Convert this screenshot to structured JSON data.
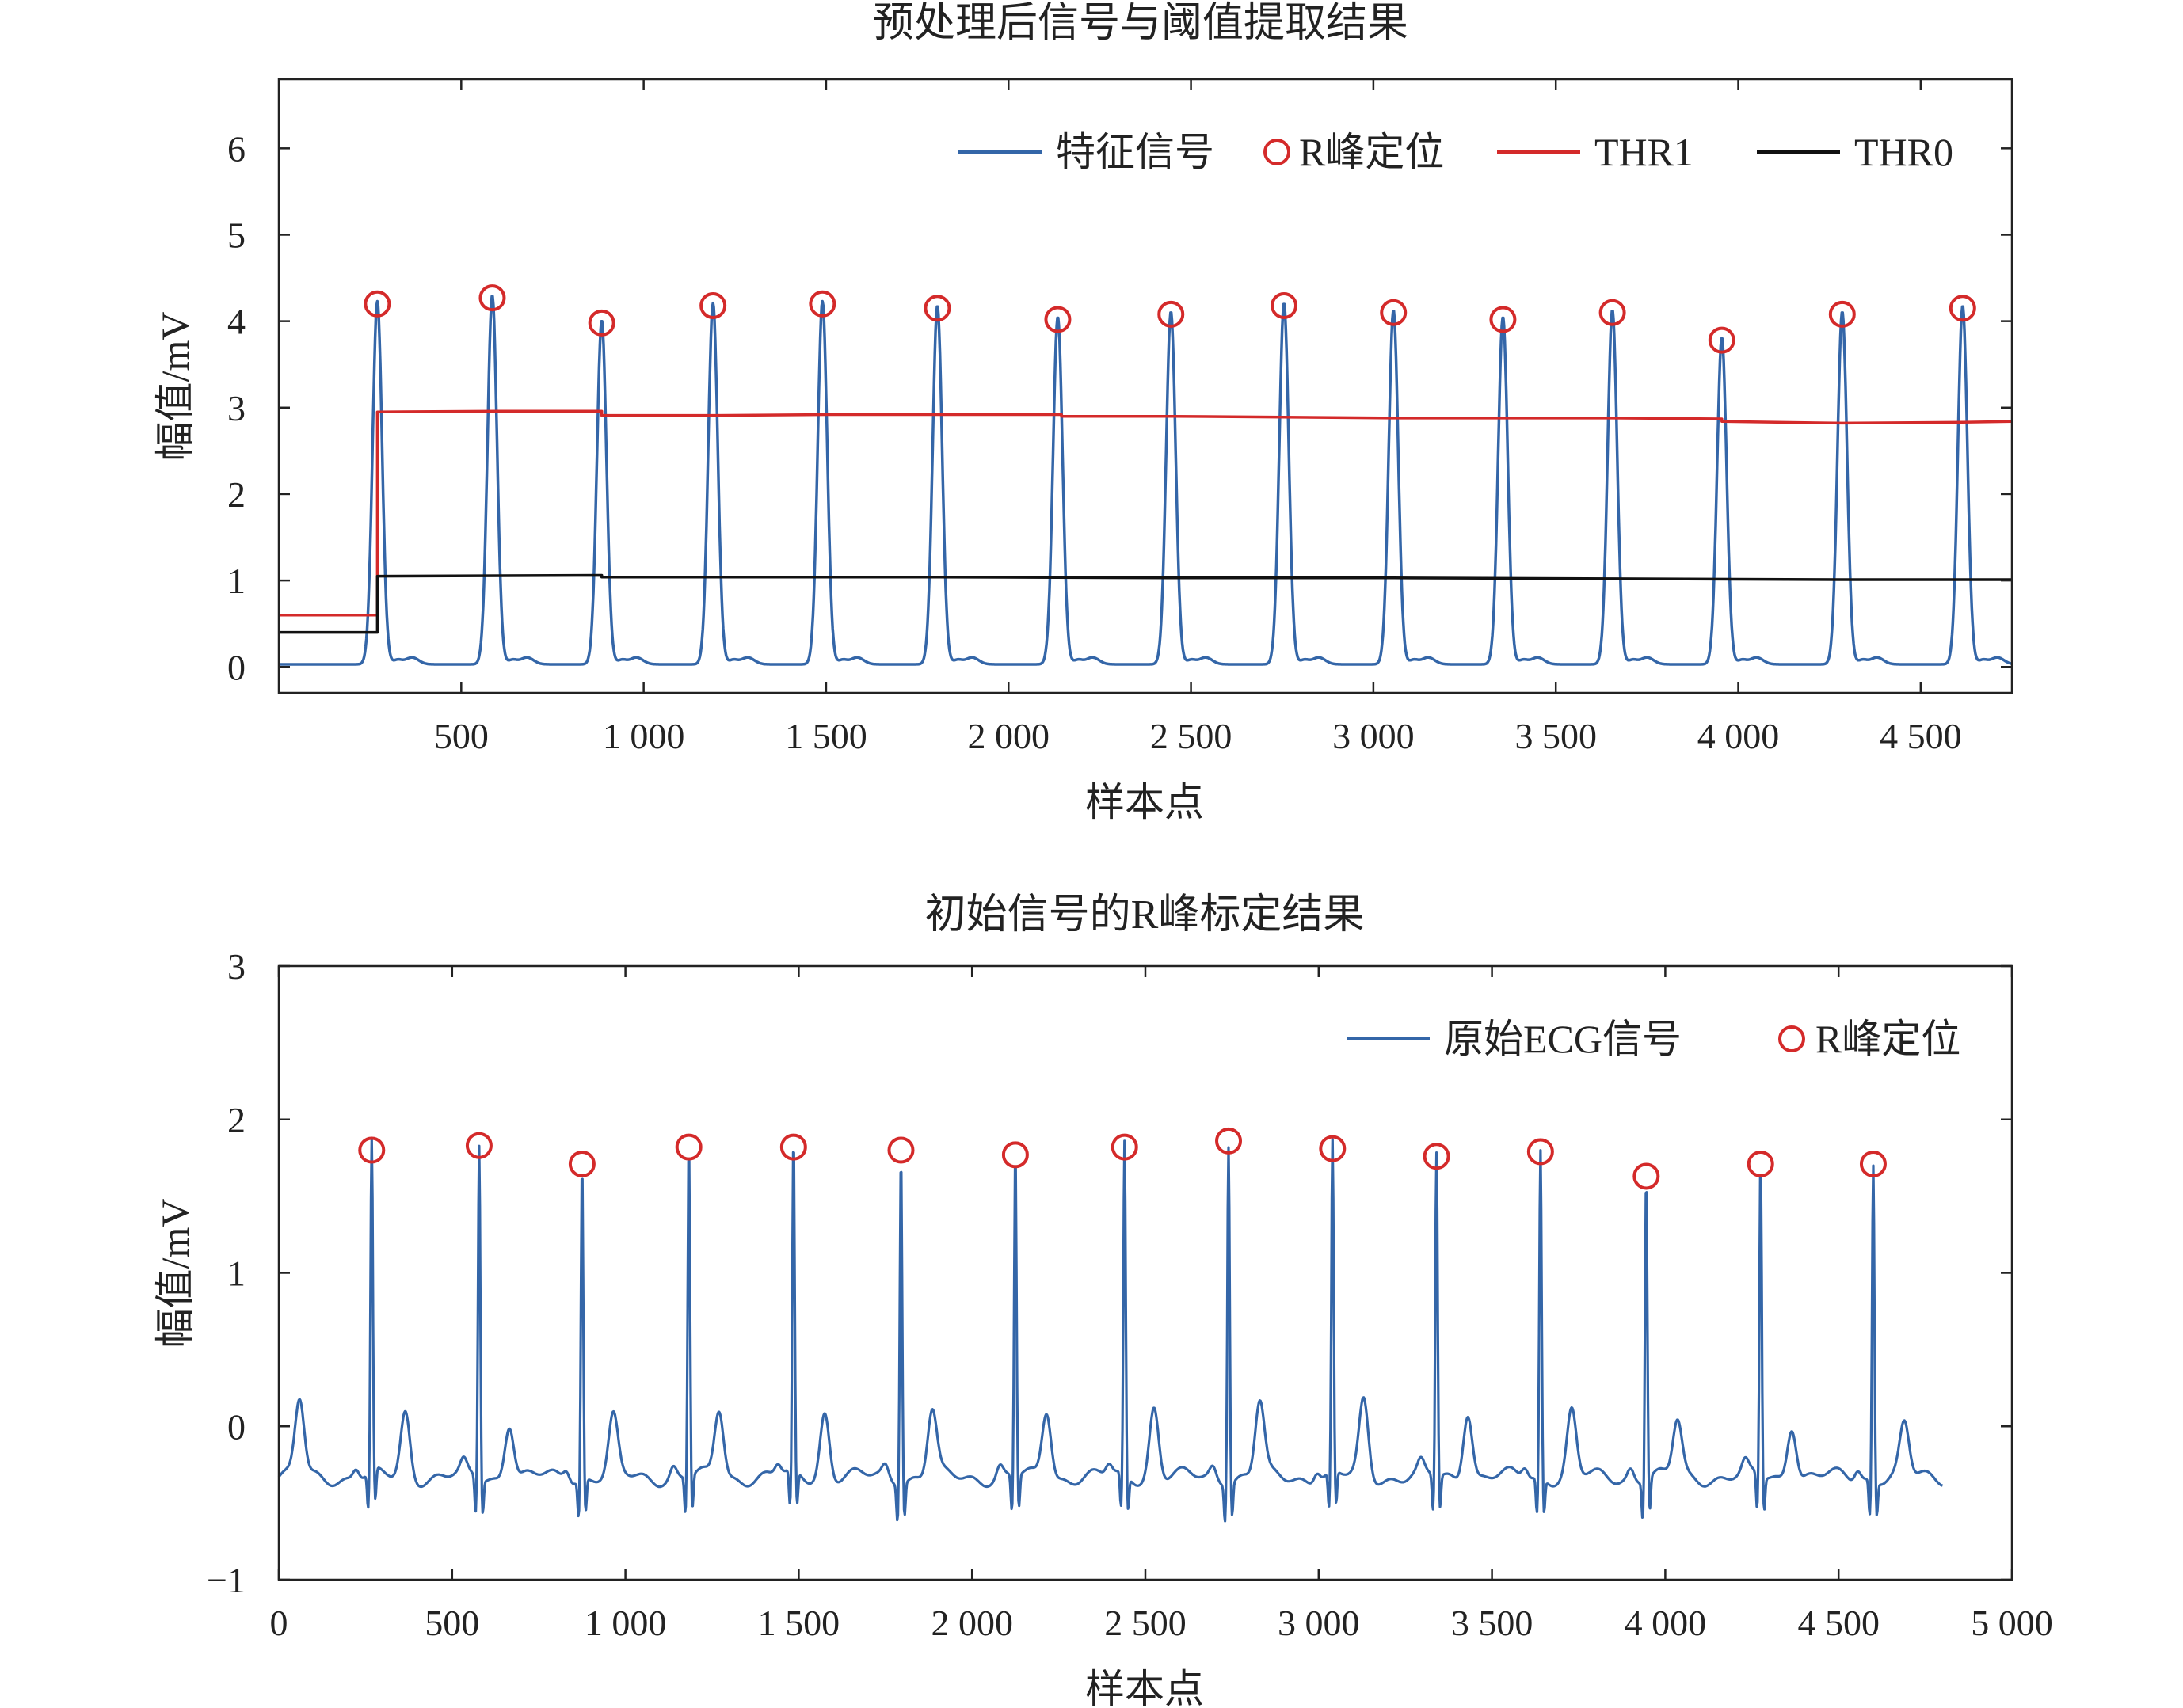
{
  "colors": {
    "signal": "#3466a8",
    "peak": "#d42a2a",
    "thr1": "#d42a2a",
    "thr0": "#111111"
  },
  "chart_data": [
    {
      "type": "line",
      "title": "预处理后信号与阈值提取结果",
      "xlabel": "样本点",
      "ylabel": "幅值/mV",
      "xlim": [
        0,
        4750
      ],
      "ylim": [
        -0.3,
        6.8
      ],
      "x_ticks": [
        500,
        1000,
        1500,
        2000,
        2500,
        3000,
        3500,
        4000,
        4500
      ],
      "x_tick_labels": [
        "500",
        "1 000",
        "1 500",
        "2 000",
        "2 500",
        "3 000",
        "3 500",
        "4 000",
        "4 500"
      ],
      "y_ticks": [
        0,
        1,
        2,
        3,
        4,
        5,
        6
      ],
      "y_tick_labels": [
        "0",
        "1",
        "2",
        "3",
        "4",
        "5",
        "6"
      ],
      "grid": false,
      "legend_position": "top-right",
      "legend": [
        "特征信号",
        "R峰定位",
        "THR1",
        "THR0"
      ],
      "r_peaks": {
        "x": [
          270,
          585,
          885,
          1190,
          1490,
          1805,
          2135,
          2445,
          2755,
          3055,
          3355,
          3655,
          3955,
          4285,
          4615
        ],
        "y": [
          4.2,
          4.27,
          3.98,
          4.18,
          4.2,
          4.15,
          4.02,
          4.08,
          4.18,
          4.1,
          4.02,
          4.1,
          3.78,
          4.08,
          4.15
        ]
      },
      "thr1": {
        "x": [
          0,
          270,
          270,
          600,
          885,
          885,
          1200,
          1500,
          1800,
          2145,
          2145,
          2455,
          3055,
          3655,
          3955,
          3955,
          4285,
          4615,
          4750
        ],
        "y": [
          0.6,
          0.6,
          2.95,
          2.96,
          2.96,
          2.91,
          2.91,
          2.92,
          2.92,
          2.92,
          2.9,
          2.9,
          2.88,
          2.88,
          2.87,
          2.84,
          2.82,
          2.83,
          2.84
        ]
      },
      "thr0": {
        "x": [
          0,
          270,
          270,
          885,
          885,
          1805,
          2445,
          3055,
          3655,
          4285,
          4750
        ],
        "y": [
          0.4,
          0.4,
          1.05,
          1.06,
          1.04,
          1.04,
          1.03,
          1.03,
          1.02,
          1.01,
          1.01
        ]
      }
    },
    {
      "type": "line",
      "title": "初始信号的R峰标定结果",
      "xlabel": "样本点",
      "ylabel": "幅值/mV",
      "xlim": [
        0,
        5000
      ],
      "ylim": [
        -1,
        3
      ],
      "x_ticks": [
        0,
        500,
        1000,
        1500,
        2000,
        2500,
        3000,
        3500,
        4000,
        4500,
        5000
      ],
      "x_tick_labels": [
        "0",
        "500",
        "1 000",
        "1 500",
        "2 000",
        "2 500",
        "3 000",
        "3 500",
        "4 000",
        "4 500",
        "5 000"
      ],
      "y_ticks": [
        -1,
        0,
        1,
        2,
        3
      ],
      "y_tick_labels": [
        "−1",
        "0",
        "1",
        "2",
        "3"
      ],
      "grid": false,
      "legend_position": "top-right",
      "legend": [
        "原始ECG信号",
        "R峰定位"
      ],
      "r_peaks": {
        "x": [
          268,
          578,
          875,
          1183,
          1485,
          1795,
          2125,
          2440,
          2740,
          3040,
          3340,
          3640,
          3945,
          4275,
          4600
        ],
        "y": [
          1.8,
          1.83,
          1.71,
          1.82,
          1.82,
          1.8,
          1.77,
          1.82,
          1.86,
          1.81,
          1.76,
          1.79,
          1.63,
          1.71,
          1.71
        ]
      },
      "t_wave_peaks": {
        "x": [
          60,
          365,
          665,
          965,
          1270,
          1575,
          1885,
          2215,
          2525,
          2830,
          3130,
          3430,
          3730,
          4035,
          4365,
          4690
        ],
        "y": [
          0.18,
          0.11,
          0.06,
          0.06,
          0.13,
          0.12,
          0.12,
          0.13,
          0.15,
          0.17,
          0.18,
          0.14,
          0.11,
          0.05,
          0.05,
          0.02
        ]
      },
      "signal_end_x": 4800
    }
  ]
}
